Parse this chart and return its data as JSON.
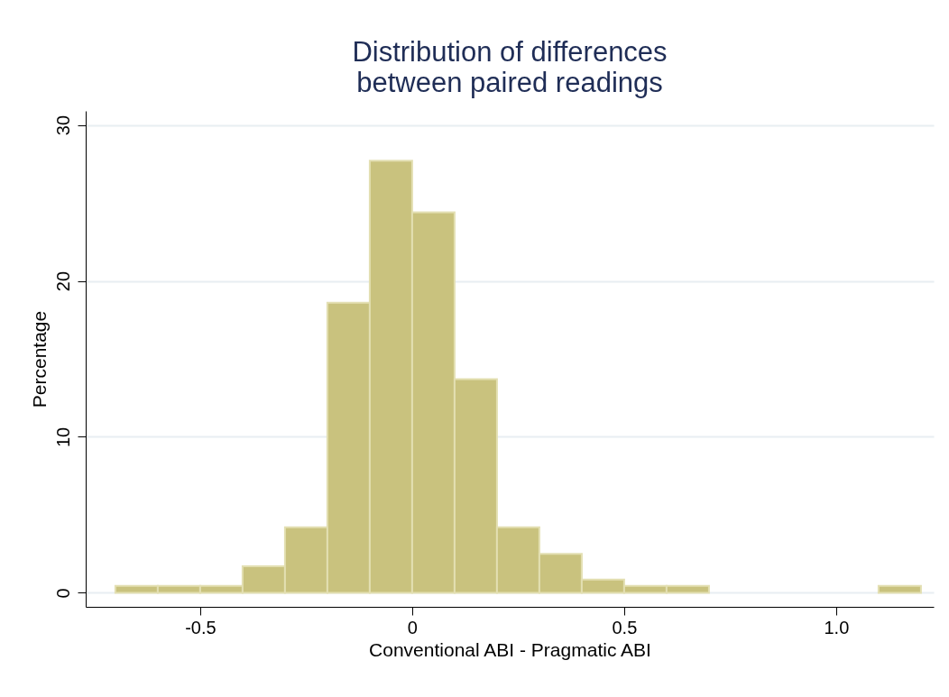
{
  "chart_data": {
    "type": "histogram",
    "title": [
      "Distribution of differences",
      "between paired readings"
    ],
    "xlabel": "Conventional ABI - Pragmatic ABI",
    "ylabel": "Percentage",
    "bins": [
      -0.7,
      -0.6,
      -0.5,
      -0.4,
      -0.3,
      -0.2,
      -0.1,
      0,
      0.1,
      0.2,
      0.3,
      0.4,
      0.5,
      0.6,
      0.7,
      0.8,
      0.9,
      1.0,
      1.1,
      1.2
    ],
    "values": [
      0.44,
      0.44,
      0.44,
      1.7,
      4.2,
      18.6,
      27.7,
      24.4,
      13.7,
      4.2,
      2.5,
      0.85,
      0.44,
      0.44,
      0,
      0,
      0,
      0,
      0.44
    ],
    "color": "#c9c27e",
    "xlim": [
      -0.77,
      1.23
    ],
    "xticks": [
      -0.5,
      0,
      0.5,
      {
        "value": 1,
        "label": "1.0"
      }
    ],
    "ylim": [
      -0.9,
      30.9
    ],
    "yticks": [
      0,
      10,
      20,
      30
    ],
    "grid": "y"
  }
}
